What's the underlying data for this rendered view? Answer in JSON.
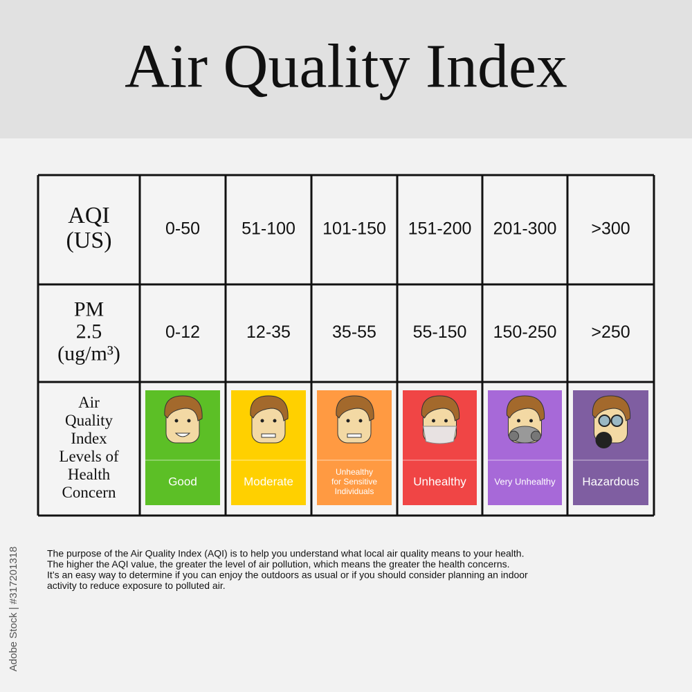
{
  "header": {
    "title": "Air Quality Index"
  },
  "table": {
    "row_headers": [
      [
        "AQI",
        "(US)"
      ],
      [
        "PM",
        "2.5",
        "(ug/m³)"
      ],
      [
        "Air",
        "Quality",
        "Index",
        "Levels of",
        "Health",
        "Concern"
      ]
    ],
    "rows": [
      [
        "0-50",
        "51-100",
        "101-150",
        "151-200",
        "201-300",
        ">300"
      ],
      [
        "0-12",
        "12-35",
        "35-55",
        "55-150",
        "150-250",
        ">250"
      ]
    ],
    "levels": [
      {
        "label": [
          "Good"
        ],
        "color": "#5cbf26"
      },
      {
        "label": [
          "Moderate"
        ],
        "color": "#ffd000"
      },
      {
        "label": [
          "Unhealthy",
          "for Sensitive",
          "Individuals"
        ],
        "color": "#ff9a42"
      },
      {
        "label": [
          "Unhealthy"
        ],
        "color": "#f04545"
      },
      {
        "label": [
          "Very Unhealthy"
        ],
        "color": "#a769d8"
      },
      {
        "label": [
          "Hazardous"
        ],
        "color": "#7f5ea1"
      }
    ]
  },
  "description": [
    "The purpose of the Air Quality Index (AQI) is to help you understand what local air quality means to your health.",
    "The higher the AQI value, the greater the level of air pollution, which means the greater the health concerns.",
    "It’s an easy way to determine if you can enjoy the outdoors as usual  or if you should consider planning an indoor",
    "activity to reduce exposure to polluted air."
  ],
  "side_text": "Adobe Stock | #317201318"
}
